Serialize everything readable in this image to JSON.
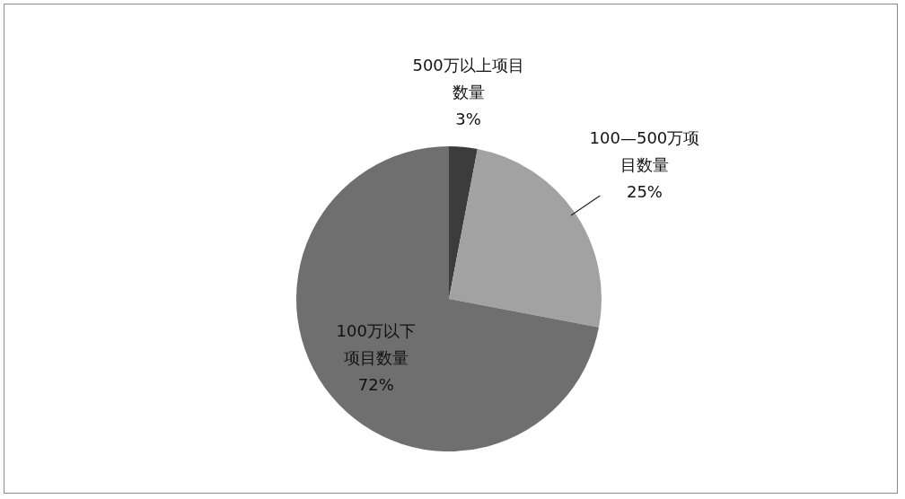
{
  "chart_data": {
    "type": "pie",
    "categories": [
      "500万以上项目数量",
      "100—500万项目数量",
      "100万以下项目数量"
    ],
    "values": [
      3,
      25,
      72
    ],
    "colors": [
      "#3c3c3c",
      "#a2a2a2",
      "#6f6f6f"
    ],
    "value_labels": [
      "3%",
      "25%",
      "72%"
    ],
    "legend": false
  }
}
